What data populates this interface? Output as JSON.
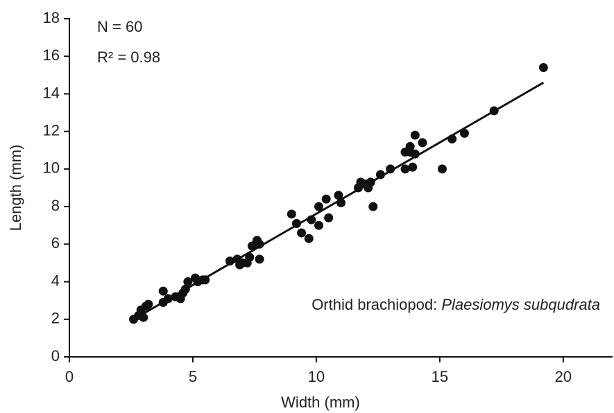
{
  "chart_data": {
    "type": "scatter",
    "xlabel": "Width (mm)",
    "ylabel": "Length (mm)",
    "annotations": [
      "N = 60",
      "R² = 0.98"
    ],
    "caption": {
      "text": "Orthid brachiopod:",
      "species": "Plaesiomys subqudrata"
    },
    "xlim": [
      0,
      22
    ],
    "xticks": [
      0,
      5,
      10,
      15,
      20
    ],
    "ylim": [
      0,
      18
    ],
    "yticks": [
      0,
      2,
      4,
      6,
      8,
      10,
      12,
      14,
      16,
      18
    ],
    "color": "#111111",
    "points": {
      "x": [
        2.6,
        2.8,
        2.9,
        3.0,
        3.1,
        3.2,
        3.8,
        3.8,
        4.0,
        4.3,
        4.5,
        4.6,
        4.7,
        4.8,
        5.1,
        5.2,
        5.4,
        5.5,
        6.5,
        6.8,
        6.9,
        7.0,
        7.2,
        7.3,
        7.4,
        7.6,
        7.7,
        7.7,
        9.0,
        9.2,
        9.4,
        9.7,
        9.8,
        10.1,
        10.1,
        10.4,
        10.5,
        10.9,
        11.0,
        11.7,
        11.8,
        12.1,
        12.2,
        12.3,
        12.6,
        13.0,
        13.6,
        13.6,
        13.8,
        13.8,
        13.9,
        14.0,
        14.0,
        14.3,
        15.1,
        15.5,
        16.0,
        17.2,
        19.2,
        12.0
      ],
      "y": [
        2.0,
        2.2,
        2.5,
        2.1,
        2.7,
        2.8,
        3.5,
        2.9,
        3.1,
        3.2,
        3.1,
        3.4,
        3.6,
        4.0,
        4.2,
        4.0,
        4.1,
        4.1,
        5.1,
        5.2,
        4.9,
        5.0,
        5.0,
        5.3,
        5.9,
        6.2,
        6.0,
        5.2,
        7.6,
        7.1,
        6.6,
        6.3,
        7.3,
        7.0,
        8.0,
        8.4,
        7.4,
        8.6,
        8.2,
        9.0,
        9.3,
        9.0,
        9.3,
        8.0,
        9.7,
        10.0,
        10.0,
        10.9,
        11.2,
        10.9,
        10.1,
        11.8,
        10.8,
        11.4,
        10.0,
        11.6,
        11.9,
        13.1,
        15.4,
        9.2
      ]
    },
    "trendline": {
      "x": [
        2.6,
        19.2
      ],
      "y": [
        2.0,
        14.6
      ]
    }
  }
}
